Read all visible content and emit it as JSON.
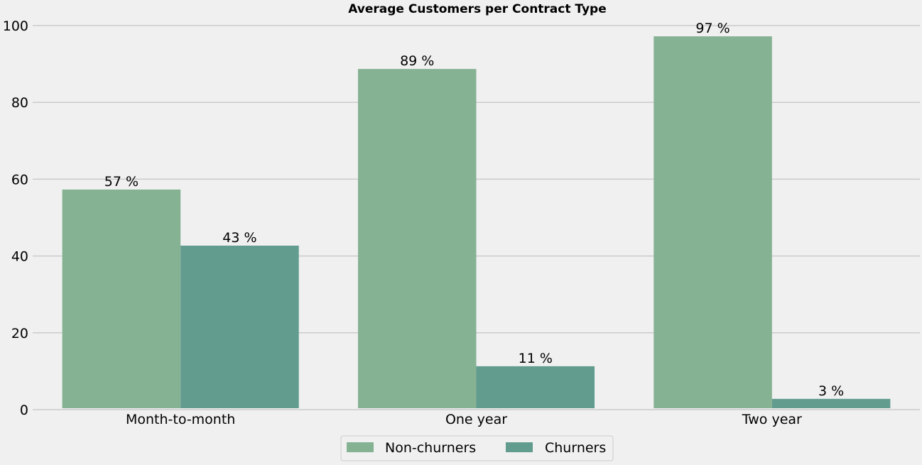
{
  "chart_data": {
    "type": "bar",
    "title": "Average Customers per Contract Type",
    "xlabel": "",
    "ylabel": "",
    "categories": [
      "Month-to-month",
      "One year",
      "Two year"
    ],
    "series": [
      {
        "name": "Non-churners",
        "values": [
          57.3,
          88.7,
          97.2
        ],
        "labels": [
          "57 %",
          "89 %",
          "97 %"
        ],
        "color": "#86b294"
      },
      {
        "name": "Churners",
        "values": [
          42.7,
          11.3,
          2.8
        ],
        "labels": [
          "43 %",
          "11 %",
          "3 %"
        ],
        "color": "#629c8e"
      }
    ],
    "ylim": [
      0,
      100
    ],
    "yticks": [
      "0",
      "20",
      "40",
      "60",
      "80",
      "100"
    ],
    "grid": "horizontal",
    "legend_position": "bottom-center"
  }
}
